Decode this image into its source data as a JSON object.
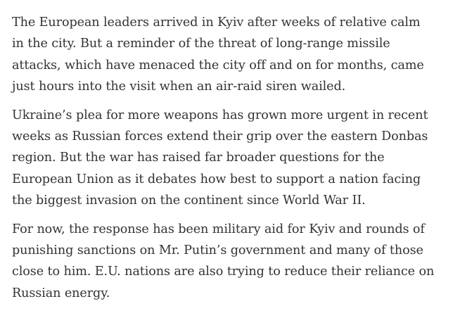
{
  "article": {
    "paragraphs": [
      {
        "lines": [
          "The European leaders arrived in Kyiv after weeks of relative calm",
          "in the city. But a reminder of the threat of long-range missile",
          "attacks, which have menaced the city off and on for months, came",
          "just hours into the visit when an air-raid siren wailed."
        ]
      },
      {
        "lines": [
          "Ukraine’s plea for more weapons has grown more urgent in recent",
          "weeks as Russian forces extend their grip over the eastern Donbas",
          "region. But the war has raised far broader questions for the",
          "European Union as it debates how best to support a nation facing",
          "the biggest invasion on the continent since World War II."
        ]
      },
      {
        "lines": [
          "For now, the response has been military aid for Kyiv and rounds of",
          "punishing sanctions on Mr. Putin’s government and many of those",
          "close to him. E.U. nations are also trying to reduce their reliance on",
          "Russian energy."
        ]
      }
    ]
  }
}
